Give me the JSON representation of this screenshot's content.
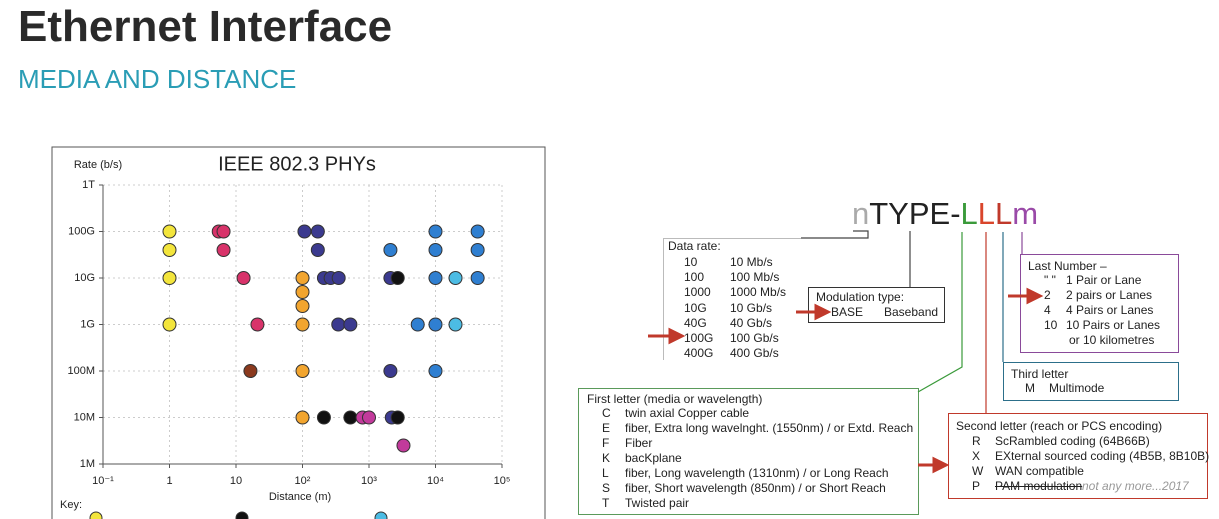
{
  "header": {
    "title": "Ethernet Interface",
    "subtitle": "MEDIA AND DISTANCE"
  },
  "chart_data": {
    "type": "scatter",
    "title": "IEEE 802.3 PHYs",
    "y_label": "Rate (b/s)",
    "x_label": "Distance (m)",
    "xscale": "log",
    "yscale": "log",
    "grid": true,
    "xlim": [
      0.1,
      100000
    ],
    "ylim": [
      1000000,
      1000000000000
    ],
    "xticks": [
      {
        "value": 0.1,
        "label": "10⁻¹"
      },
      1,
      10,
      {
        "value": 100,
        "label": "10²"
      },
      {
        "value": 1000,
        "label": "10³"
      },
      {
        "value": 10000,
        "label": "10⁴"
      },
      {
        "value": 100000,
        "label": "10⁵"
      }
    ],
    "yticks": [
      {
        "value": 1000000,
        "label": "1M"
      },
      {
        "value": 10000000,
        "label": "10M"
      },
      {
        "value": 100000000,
        "label": "100M"
      },
      {
        "value": 1000000000,
        "label": "1G"
      },
      {
        "value": 10000000000,
        "label": "10G"
      },
      {
        "value": 100000000000,
        "label": "100G"
      },
      {
        "value": 1000000000000,
        "label": "1T"
      }
    ],
    "series": [
      {
        "color": "#f3e53c",
        "x": [
          1,
          1,
          1,
          1
        ],
        "values": [
          100000000000,
          40000000000,
          10000000000,
          1000000000
        ]
      },
      {
        "color": "#d8336a",
        "x": [
          5.5,
          6.5,
          6.5,
          13,
          21
        ],
        "values": [
          100000000000,
          100000000000,
          40000000000,
          10000000000,
          1000000000
        ]
      },
      {
        "color": "#3b3a8f",
        "x": [
          107,
          170,
          170,
          210,
          265,
          350,
          345,
          525,
          2100,
          2100,
          2200
        ],
        "values": [
          100000000000,
          100000000000,
          40000000000,
          10000000000,
          10000000000,
          10000000000,
          1000000000,
          1000000000,
          10000000000,
          100000000,
          10000000
        ]
      },
      {
        "color": "#f2a52f",
        "x": [
          100,
          100,
          100,
          100,
          100,
          100
        ],
        "values": [
          10000000000,
          5000000000,
          2500000000,
          1000000000,
          100000000,
          10000000
        ]
      },
      {
        "color": "#8b3a1e",
        "x": [
          16.5
        ],
        "values": [
          100000000
        ]
      },
      {
        "color": "#111111",
        "x": [
          2700,
          210,
          525,
          2700
        ],
        "values": [
          10000000000,
          10000000,
          10000000,
          10000000
        ]
      },
      {
        "color": "#c23a9b",
        "x": [
          800,
          1000,
          3300
        ],
        "values": [
          10000000,
          10000000,
          2500000
        ]
      },
      {
        "color": "#2f7fd1",
        "x": [
          2100,
          10000,
          10000,
          43000,
          43000,
          43000,
          10000,
          5400,
          10000,
          10000
        ],
        "values": [
          40000000000,
          100000000000,
          40000000000,
          100000000000,
          40000000000,
          10000000000,
          10000000000,
          1000000000,
          1000000000,
          100000000
        ]
      },
      {
        "color": "#4cbce4",
        "x": [
          20000,
          20000
        ],
        "values": [
          10000000000,
          1000000000
        ]
      }
    ]
  },
  "key": {
    "label": "Key:"
  },
  "format": {
    "parts": [
      "n",
      "TYPE-",
      "L",
      "L",
      "L",
      "m"
    ]
  },
  "data_rate": {
    "title": "Data rate:",
    "rows": [
      [
        "10",
        "10 Mb/s"
      ],
      [
        "100",
        "100 Mb/s"
      ],
      [
        "1000",
        "1000 Mb/s"
      ],
      [
        "10G",
        "10 Gb/s"
      ],
      [
        "40G",
        "40 Gb/s"
      ],
      [
        "100G",
        "100 Gb/s"
      ],
      [
        "400G",
        "400 Gb/s"
      ]
    ]
  },
  "modulation": {
    "title": "Modulation type:",
    "rows": [
      [
        "BASE",
        "Baseband"
      ]
    ]
  },
  "last_number": {
    "title": "Last Number –",
    "rows": [
      [
        "\" \"",
        "1 Pair or Lane"
      ],
      [
        "2",
        "2 pairs or Lanes"
      ],
      [
        "4",
        "4 Pairs or Lanes"
      ],
      [
        "10",
        "10 Pairs or Lanes"
      ]
    ],
    "extra": "or 10 kilometres"
  },
  "third_letter": {
    "title": "Third letter",
    "rows": [
      [
        "M",
        "Multimode"
      ]
    ]
  },
  "first_letter": {
    "title": "First letter (media or wavelength)",
    "rows": [
      [
        "C",
        "twin axial Copper cable"
      ],
      [
        "E",
        "fiber, Extra long wavelnght. (1550nm) / or Extd. Reach"
      ],
      [
        "F",
        "Fiber"
      ],
      [
        "K",
        "bacKplane"
      ],
      [
        "L",
        "fiber, Long wavelength (1310nm) / or Long Reach"
      ],
      [
        "S",
        "fiber, Short wavelength (850nm) / or Short Reach"
      ],
      [
        "T",
        "Twisted pair"
      ]
    ]
  },
  "second_letter": {
    "title": "Second letter (reach or PCS encoding)",
    "rows": [
      [
        "R",
        "ScRambled coding (64B66B)"
      ],
      [
        "X",
        "EXternal sourced coding (4B5B, 8B10B)"
      ],
      [
        "W",
        "WAN compatible"
      ],
      [
        "P",
        "PAM modulation"
      ]
    ],
    "note": "not any more...2017"
  }
}
